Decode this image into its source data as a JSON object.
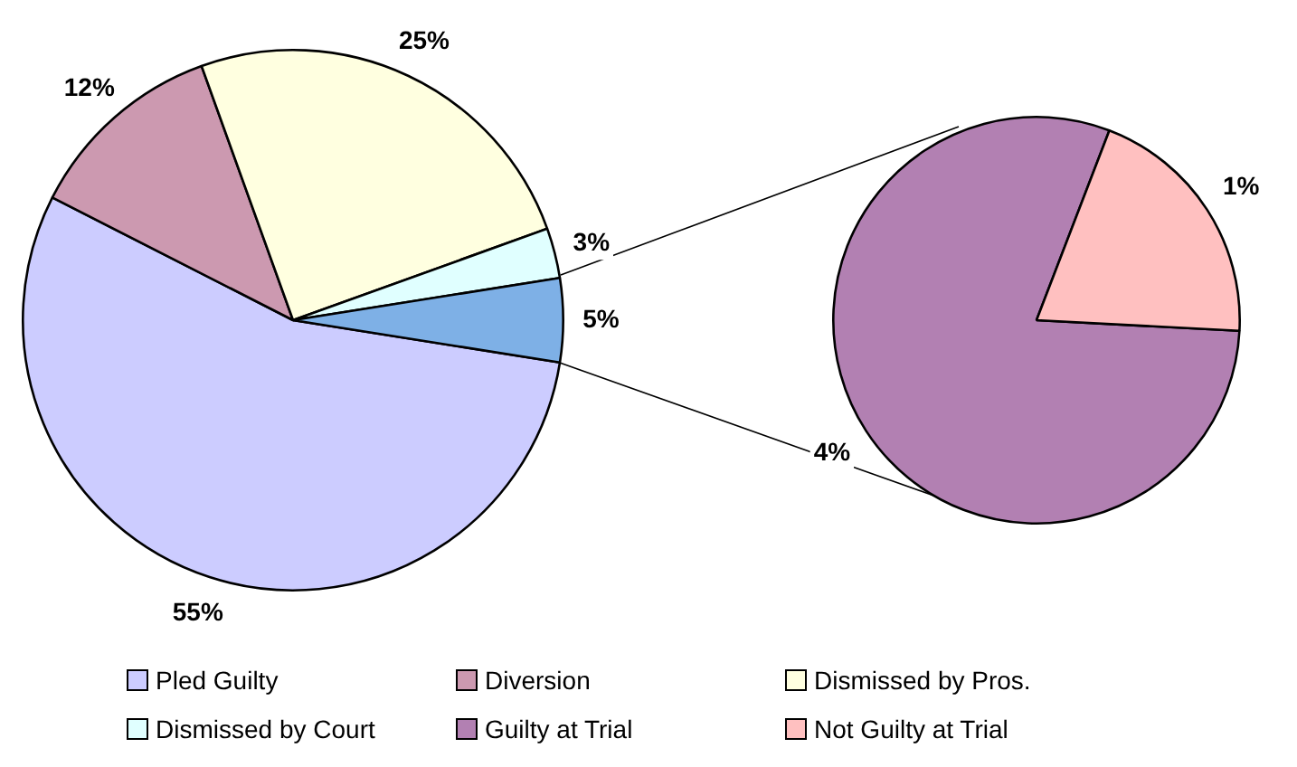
{
  "chart_data": [
    {
      "type": "pie",
      "categories": [
        "Pled Guilty",
        "Diversion",
        "Dismissed by Pros.",
        "Dismissed by Court",
        null
      ],
      "values": [
        55,
        12,
        25,
        3,
        5
      ],
      "colors": [
        "#ccccff",
        "#cc99b0",
        "#ffffe0",
        "#e0ffff",
        "#7eb0e6"
      ],
      "value_labels": [
        "55%",
        "12%",
        "25%",
        "3%",
        "5%"
      ],
      "legend": "bottom"
    },
    {
      "type": "pie",
      "categories": [
        "Guilty at Trial",
        "Not Guilty at Trial"
      ],
      "values": [
        4,
        1
      ],
      "colors": [
        "#b280b2",
        "#ffc0c0"
      ],
      "value_labels": [
        "4%",
        "1%"
      ],
      "legend": "bottom"
    }
  ]
}
